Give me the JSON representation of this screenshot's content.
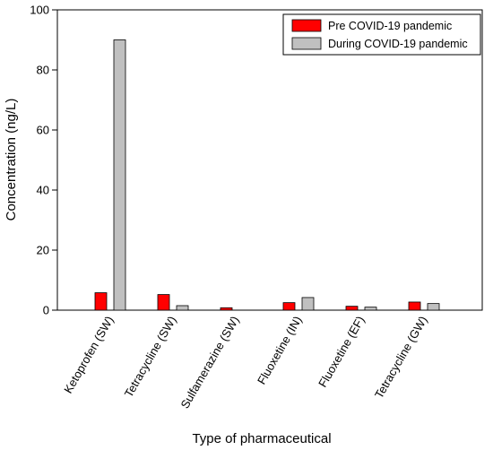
{
  "chart_data": {
    "type": "bar",
    "xlabel": "Type of pharmaceutical",
    "ylabel": "Concentration (ng/L)",
    "ylim": [
      0,
      100
    ],
    "yticks": [
      0,
      20,
      40,
      60,
      80,
      100
    ],
    "categories": [
      "Ketoprofen (SW)",
      "Tetracycline (SW)",
      "Sulfamerazine (SW)",
      "Fluoxetine (IN)",
      "Fluoxetine (EF)",
      "Tetracycline (GW)"
    ],
    "series": [
      {
        "name": "Pre COVID-19 pandemic",
        "color": "#ff0000",
        "values": [
          5.8,
          5.2,
          0.8,
          2.5,
          1.3,
          2.7
        ]
      },
      {
        "name": "During COVID-19 pandemic",
        "color": "#c0c0c0",
        "values": [
          90,
          1.5,
          0,
          4.2,
          1.0,
          2.2
        ]
      }
    ],
    "grid": false,
    "legend": "top-right"
  }
}
